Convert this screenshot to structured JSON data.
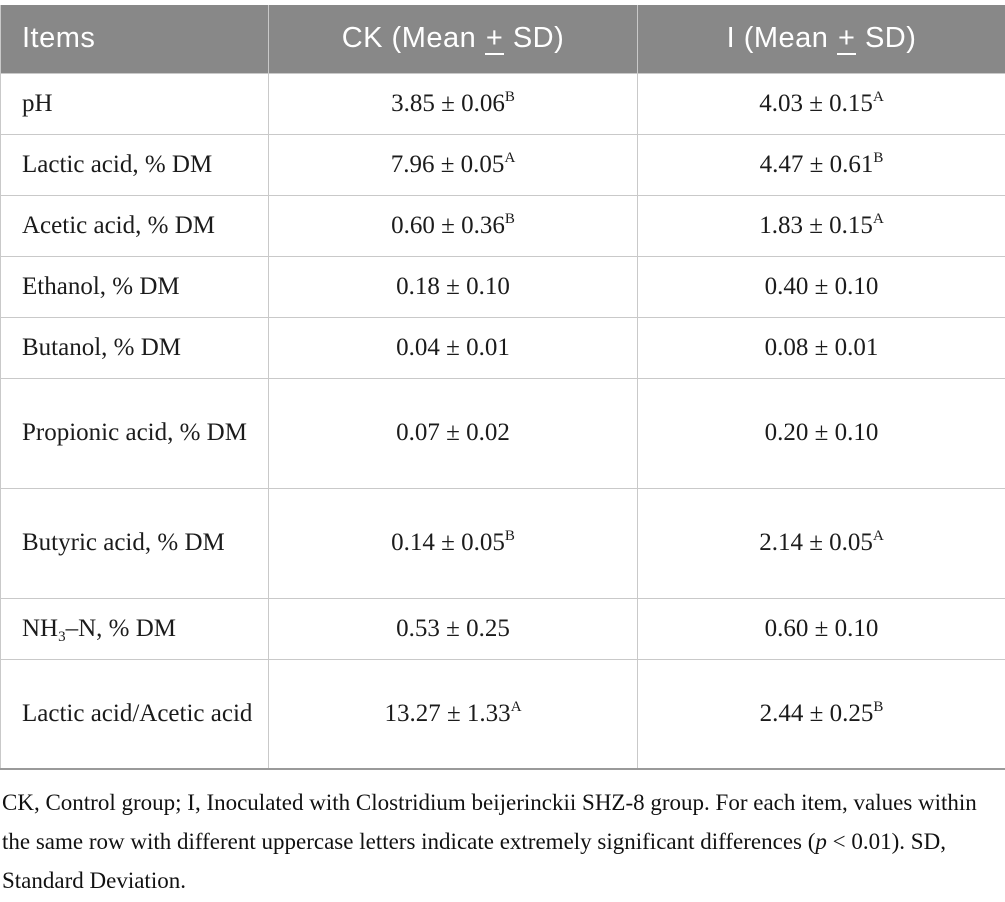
{
  "colors": {
    "header_background": "#888888",
    "header_text": "#ffffff",
    "cell_border": "#c9c9c9",
    "table_bottom_border": "#9a9a9a",
    "body_text": "#1b1b1b"
  },
  "table": {
    "header": {
      "items_label": "Items",
      "ck": {
        "pre": "CK (Mean ",
        "pm": "+",
        "post": " SD)"
      },
      "i": {
        "pre": "I (Mean ",
        "pm": "+",
        "post": " SD)"
      }
    },
    "rows": [
      {
        "item": "pH",
        "ck": {
          "value": "3.85 ± 0.06",
          "sup": "B"
        },
        "i": {
          "value": "4.03 ± 0.15",
          "sup": "A"
        }
      },
      {
        "item": "Lactic acid, % DM",
        "ck": {
          "value": "7.96 ± 0.05",
          "sup": "A"
        },
        "i": {
          "value": "4.47 ± 0.61",
          "sup": "B"
        }
      },
      {
        "item": "Acetic acid, % DM",
        "ck": {
          "value": "0.60 ± 0.36",
          "sup": "B"
        },
        "i": {
          "value": "1.83 ± 0.15",
          "sup": "A"
        }
      },
      {
        "item": "Ethanol, % DM",
        "ck": {
          "value": "0.18 ± 0.10"
        },
        "i": {
          "value": "0.40 ± 0.10"
        }
      },
      {
        "item": "Butanol, % DM",
        "ck": {
          "value": "0.04 ± 0.01"
        },
        "i": {
          "value": "0.08 ± 0.01"
        }
      },
      {
        "item": "Propionic acid, % DM",
        "ck": {
          "value": "0.07 ± 0.02"
        },
        "i": {
          "value": "0.20 ± 0.10"
        }
      },
      {
        "item": "Butyric acid, % DM",
        "ck": {
          "value": "0.14 ± 0.05",
          "sup": "B"
        },
        "i": {
          "value": "2.14 ± 0.05",
          "sup": "A"
        }
      },
      {
        "item_pre": "NH",
        "item_sub": "3",
        "item_post": "–N, % DM",
        "ck": {
          "value": "0.53 ± 0.25"
        },
        "i": {
          "value": "0.60 ± 0.10"
        }
      },
      {
        "item": "Lactic acid/Acetic acid",
        "ck": {
          "value": "13.27 ± 1.33",
          "sup": "A"
        },
        "i": {
          "value": "2.44 ± 0.25",
          "sup": "B"
        }
      }
    ]
  },
  "footnote": {
    "before_p": "CK, Control group; I, Inoculated with Clostridium beijerinckii SHZ-8 group. For each item, values within the same row with different uppercase letters indicate extremely significant differences (",
    "p_symbol": "p",
    "after_p": " < 0.01). SD, Standard Deviation."
  }
}
